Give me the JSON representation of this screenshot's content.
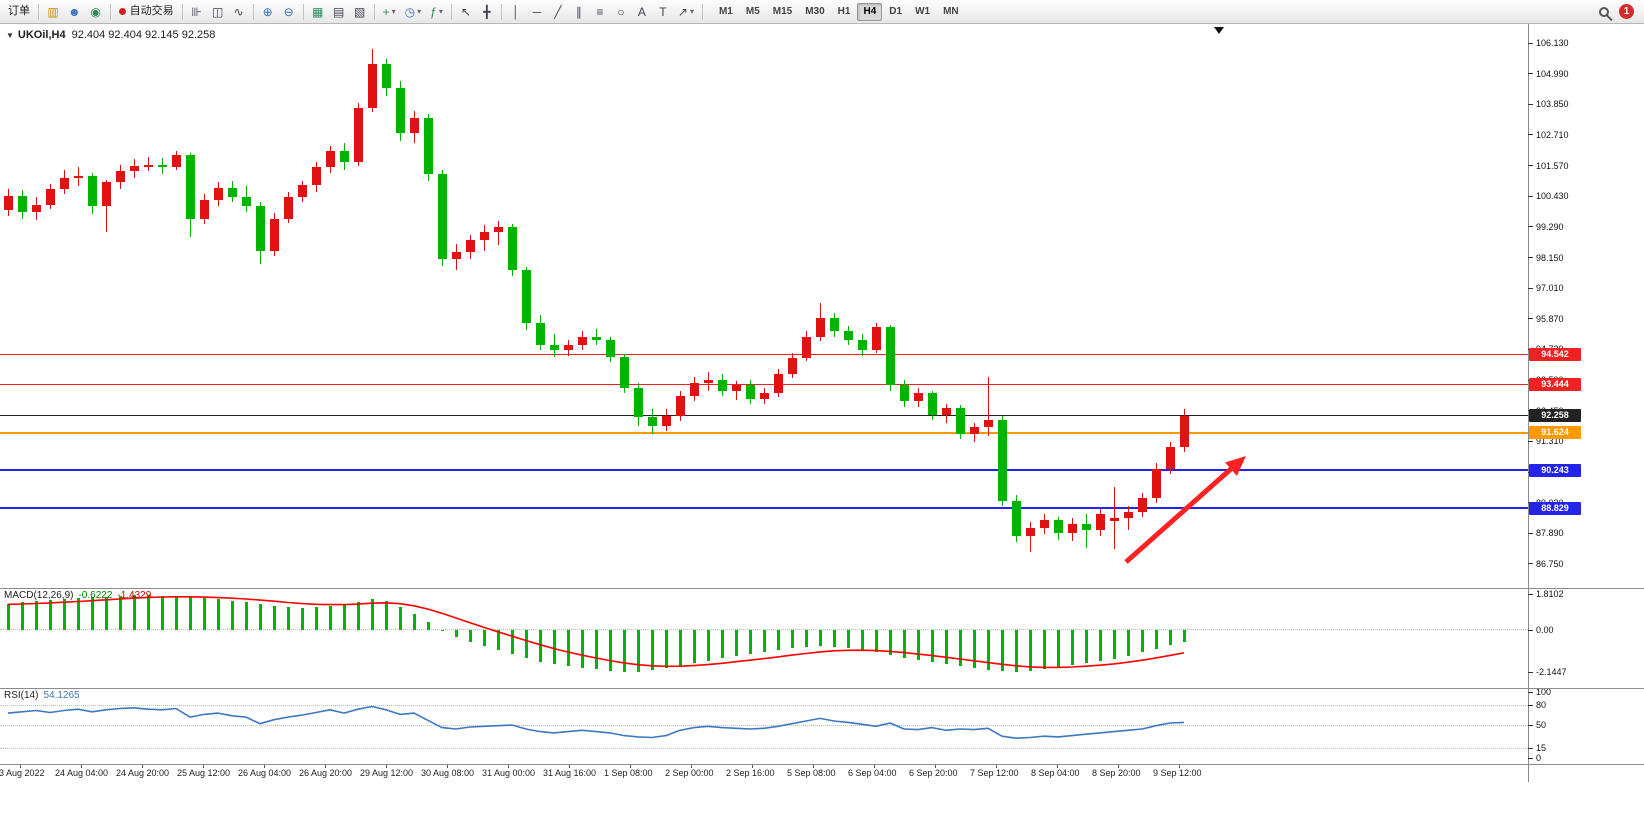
{
  "icons": {
    "caret_down": "▼",
    "charts": "▥",
    "profile": "☻",
    "community": "◉",
    "bar_chart": "⊪",
    "candlestick": "◫",
    "line_chart": "∿",
    "zoom_in": "⊕",
    "zoom_out": "⊖",
    "tile_windows": "▦",
    "arrange": "▤",
    "cascade": "▧",
    "new_chart": "+",
    "clock": "◷",
    "indicators": "ƒ",
    "cursor": "↖",
    "crosshair": "╋",
    "vertical_line": "│",
    "horizontal_line": "─",
    "trend_line": "╱",
    "channel": "∥",
    "fibonacci": "≡",
    "shapes": "○",
    "text": "A",
    "label": "T",
    "arrow_tool": "↗",
    "dropdown": "▾"
  },
  "toolbar": {
    "order_label": "订单",
    "autotrade_label": "自动交易",
    "timeframes": [
      "M1",
      "M5",
      "M15",
      "M30",
      "H1",
      "H4",
      "D1",
      "W1",
      "MN"
    ],
    "active_timeframe": "H4",
    "notification_count": "1"
  },
  "chart": {
    "symbol_period": "UKOil,H4",
    "ohlc_text": "92.404 92.404 92.145 92.258",
    "price_axis": [
      "106.130",
      "104.990",
      "103.850",
      "102.710",
      "101.570",
      "100.430",
      "99.290",
      "98.150",
      "97.010",
      "95.870",
      "94.730",
      "93.590",
      "92.450",
      "91.310",
      "90.170",
      "89.030",
      "87.890",
      "86.750"
    ],
    "hlines": [
      {
        "price": 94.542,
        "label": "94.542",
        "color": "#ee2222",
        "thickness": 1
      },
      {
        "price": 93.444,
        "label": "93.444",
        "color": "#ee2222",
        "thickness": 1
      },
      {
        "price": 92.258,
        "label": "92.258",
        "color": "#222222",
        "thickness": 1
      },
      {
        "price": 91.624,
        "label": "91.624",
        "color": "#ff9900",
        "thickness": 2
      },
      {
        "price": 90.243,
        "label": "90.243",
        "color": "#2424e8",
        "thickness": 2
      },
      {
        "price": 88.829,
        "label": "88.829",
        "color": "#2424e8",
        "thickness": 2
      }
    ]
  },
  "macd_panel": {
    "name": "MACD(12,26,9)",
    "main_value": "-0.6222",
    "signal_value": "-1.4329",
    "axis": [
      "1.8102",
      "0.00",
      "-2.1447"
    ]
  },
  "rsi_panel": {
    "name": "RSI(14)",
    "value": "54.1265",
    "axis": [
      "100",
      "80",
      "50",
      "15",
      "0"
    ],
    "levels": [
      80,
      50,
      15
    ]
  },
  "time_axis": [
    "23 Aug 2022",
    "24 Aug 04:00",
    "24 Aug 20:00",
    "25 Aug 12:00",
    "26 Aug 04:00",
    "26 Aug 20:00",
    "29 Aug 12:00",
    "30 Aug 08:00",
    "31 Aug 00:00",
    "31 Aug 16:00",
    "1 Sep 08:00",
    "2 Sep 00:00",
    "2 Sep 16:00",
    "5 Sep 08:00",
    "6 Sep 04:00",
    "6 Sep 20:00",
    "7 Sep 12:00",
    "8 Sep 04:00",
    "8 Sep 20:00",
    "9 Sep 12:00"
  ],
  "chart_data": {
    "type": "candlestick",
    "symbol": "UKOil",
    "timeframe": "H4",
    "ohlc_current": {
      "open": 92.404,
      "high": 92.404,
      "low": 92.145,
      "close": 92.258
    },
    "ylim": [
      85.9,
      106.7
    ],
    "candles": [
      [
        99.9,
        100.7,
        99.7,
        100.45
      ],
      [
        100.45,
        100.65,
        99.6,
        99.85
      ],
      [
        99.85,
        100.4,
        99.55,
        100.1
      ],
      [
        100.1,
        100.9,
        99.95,
        100.7
      ],
      [
        100.7,
        101.4,
        100.5,
        101.1
      ],
      [
        101.1,
        101.5,
        100.8,
        101.2
      ],
      [
        101.2,
        101.3,
        99.75,
        100.05
      ],
      [
        100.05,
        101.05,
        99.1,
        100.95
      ],
      [
        100.95,
        101.6,
        100.7,
        101.35
      ],
      [
        101.35,
        101.8,
        101.1,
        101.55
      ],
      [
        101.55,
        101.9,
        101.35,
        101.6
      ],
      [
        101.6,
        101.85,
        101.25,
        101.5
      ],
      [
        101.5,
        102.1,
        101.4,
        101.95
      ],
      [
        101.95,
        102.05,
        98.9,
        99.6
      ],
      [
        99.6,
        100.5,
        99.4,
        100.3
      ],
      [
        100.3,
        100.95,
        100.05,
        100.75
      ],
      [
        100.75,
        101.0,
        100.2,
        100.4
      ],
      [
        100.4,
        100.8,
        99.85,
        100.05
      ],
      [
        100.05,
        100.2,
        97.9,
        98.4
      ],
      [
        98.4,
        99.8,
        98.2,
        99.6
      ],
      [
        99.6,
        100.6,
        99.45,
        100.4
      ],
      [
        100.4,
        101.0,
        100.2,
        100.85
      ],
      [
        100.85,
        101.7,
        100.6,
        101.5
      ],
      [
        101.5,
        102.3,
        101.3,
        102.1
      ],
      [
        102.1,
        102.4,
        101.4,
        101.7
      ],
      [
        101.7,
        103.9,
        101.55,
        103.7
      ],
      [
        103.7,
        105.9,
        103.55,
        105.35
      ],
      [
        105.35,
        105.55,
        104.15,
        104.45
      ],
      [
        104.45,
        104.7,
        102.5,
        102.8
      ],
      [
        102.8,
        103.6,
        102.4,
        103.35
      ],
      [
        103.35,
        103.5,
        101.0,
        101.25
      ],
      [
        101.25,
        101.4,
        97.85,
        98.1
      ],
      [
        98.1,
        98.65,
        97.7,
        98.35
      ],
      [
        98.35,
        99.0,
        98.1,
        98.8
      ],
      [
        98.8,
        99.35,
        98.4,
        99.1
      ],
      [
        99.1,
        99.5,
        98.6,
        99.3
      ],
      [
        99.3,
        99.4,
        97.45,
        97.7
      ],
      [
        97.7,
        97.8,
        95.45,
        95.7
      ],
      [
        95.7,
        96.0,
        94.7,
        94.9
      ],
      [
        94.9,
        95.3,
        94.45,
        94.7
      ],
      [
        94.7,
        95.1,
        94.5,
        94.9
      ],
      [
        94.9,
        95.4,
        94.7,
        95.2
      ],
      [
        95.2,
        95.5,
        94.9,
        95.1
      ],
      [
        95.1,
        95.2,
        94.25,
        94.45
      ],
      [
        94.45,
        94.55,
        93.1,
        93.3
      ],
      [
        93.3,
        93.5,
        91.9,
        92.2
      ],
      [
        92.2,
        92.5,
        91.6,
        91.9
      ],
      [
        91.9,
        92.5,
        91.7,
        92.25
      ],
      [
        92.25,
        93.2,
        92.05,
        93.0
      ],
      [
        93.0,
        93.7,
        92.8,
        93.5
      ],
      [
        93.5,
        93.9,
        93.2,
        93.6
      ],
      [
        93.6,
        93.8,
        93.0,
        93.2
      ],
      [
        93.2,
        93.55,
        92.85,
        93.4
      ],
      [
        93.4,
        93.6,
        92.7,
        92.9
      ],
      [
        92.9,
        93.3,
        92.7,
        93.1
      ],
      [
        93.1,
        94.0,
        92.95,
        93.8
      ],
      [
        93.8,
        94.6,
        93.65,
        94.4
      ],
      [
        94.4,
        95.4,
        94.3,
        95.2
      ],
      [
        95.2,
        96.45,
        95.05,
        95.9
      ],
      [
        95.9,
        96.1,
        95.2,
        95.4
      ],
      [
        95.4,
        95.6,
        94.9,
        95.1
      ],
      [
        95.1,
        95.3,
        94.5,
        94.7
      ],
      [
        94.7,
        95.7,
        94.6,
        95.55
      ],
      [
        95.55,
        95.65,
        93.2,
        93.4
      ],
      [
        93.4,
        93.6,
        92.6,
        92.8
      ],
      [
        92.8,
        93.3,
        92.6,
        93.1
      ],
      [
        93.1,
        93.2,
        92.1,
        92.3
      ],
      [
        92.3,
        92.7,
        92.0,
        92.55
      ],
      [
        92.55,
        92.65,
        91.4,
        91.6
      ],
      [
        91.6,
        92.0,
        91.3,
        91.85
      ],
      [
        91.85,
        93.7,
        91.5,
        92.1
      ],
      [
        92.1,
        92.25,
        88.9,
        89.1
      ],
      [
        89.1,
        89.3,
        87.55,
        87.8
      ],
      [
        87.8,
        88.3,
        87.2,
        88.1
      ],
      [
        88.1,
        88.6,
        87.85,
        88.4
      ],
      [
        88.4,
        88.5,
        87.65,
        87.9
      ],
      [
        87.9,
        88.45,
        87.6,
        88.25
      ],
      [
        88.25,
        88.6,
        87.35,
        88.0
      ],
      [
        88.0,
        88.8,
        87.8,
        88.6
      ],
      [
        88.35,
        89.6,
        87.3,
        88.45
      ],
      [
        88.45,
        88.9,
        88.0,
        88.7
      ],
      [
        88.7,
        89.4,
        88.5,
        89.2
      ],
      [
        89.2,
        90.5,
        89.0,
        90.3
      ],
      [
        90.3,
        91.3,
        90.1,
        91.1
      ],
      [
        91.1,
        92.5,
        90.9,
        92.26
      ]
    ],
    "macd_hist": [
      1.3,
      1.4,
      1.45,
      1.5,
      1.55,
      1.6,
      1.65,
      1.7,
      1.75,
      1.8,
      1.8,
      1.75,
      1.72,
      1.68,
      1.62,
      1.55,
      1.48,
      1.42,
      1.3,
      1.22,
      1.15,
      1.12,
      1.15,
      1.22,
      1.3,
      1.42,
      1.55,
      1.45,
      1.15,
      0.8,
      0.4,
      0.0,
      -0.35,
      -0.6,
      -0.8,
      -1.0,
      -1.2,
      -1.42,
      -1.6,
      -1.72,
      -1.82,
      -1.92,
      -2.0,
      -2.08,
      -2.14,
      -2.12,
      -2.05,
      -1.95,
      -1.82,
      -1.68,
      -1.55,
      -1.42,
      -1.3,
      -1.22,
      -1.12,
      -1.02,
      -0.92,
      -0.85,
      -0.8,
      -0.84,
      -0.92,
      -1.0,
      -1.12,
      -1.25,
      -1.4,
      -1.52,
      -1.62,
      -1.72,
      -1.82,
      -1.92,
      -2.02,
      -2.1,
      -2.12,
      -2.08,
      -2.0,
      -1.9,
      -1.8,
      -1.68,
      -1.58,
      -1.45,
      -1.3,
      -1.12,
      -0.95,
      -0.78,
      -0.62
    ],
    "rsi": [
      68,
      70,
      72,
      69,
      72,
      74,
      70,
      73,
      75,
      76,
      74,
      73,
      75,
      62,
      66,
      68,
      64,
      62,
      52,
      58,
      62,
      65,
      69,
      73,
      68,
      74,
      78,
      73,
      66,
      68,
      57,
      46,
      44,
      47,
      48,
      49,
      50,
      44,
      40,
      38,
      40,
      42,
      40,
      38,
      34,
      32,
      31,
      34,
      42,
      46,
      48,
      46,
      45,
      44,
      45,
      48,
      52,
      56,
      60,
      56,
      54,
      51,
      48,
      53,
      44,
      43,
      46,
      42,
      44,
      43,
      45,
      33,
      30,
      31,
      33,
      32,
      34,
      36,
      38,
      40,
      42,
      44,
      49,
      53,
      54
    ]
  },
  "colors": {
    "bull": "#e01212",
    "bear": "#00b400",
    "macd_hist": "#00b400",
    "macd_signal": "#ff0000",
    "rsi_line": "#3d78c0",
    "annotation_arrow": "#ff2222"
  }
}
